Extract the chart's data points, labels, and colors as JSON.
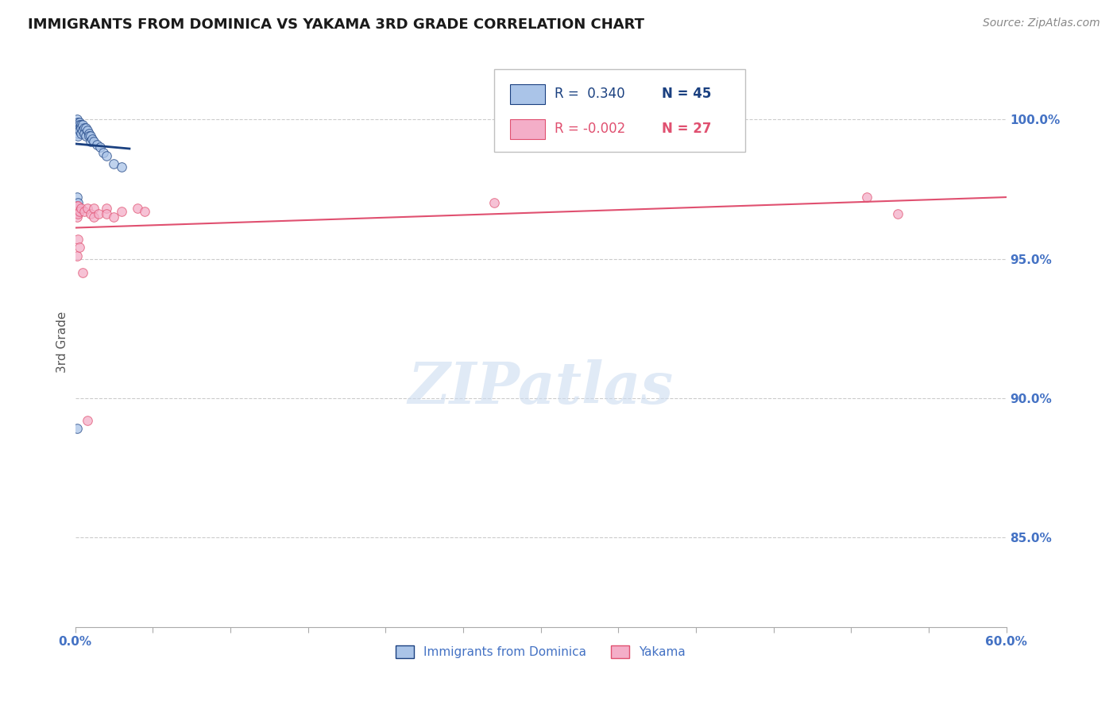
{
  "title": "IMMIGRANTS FROM DOMINICA VS YAKAMA 3RD GRADE CORRELATION CHART",
  "source": "Source: ZipAtlas.com",
  "ylabel": "3rd Grade",
  "ytick_labels": [
    "85.0%",
    "90.0%",
    "95.0%",
    "100.0%"
  ],
  "ytick_values": [
    0.85,
    0.9,
    0.95,
    1.0
  ],
  "xmin": 0.0,
  "xmax": 0.6,
  "ymin": 0.818,
  "ymax": 1.022,
  "blue_color": "#aac4e8",
  "pink_color": "#f4aec8",
  "trend_blue_color": "#1a4080",
  "trend_pink_color": "#e05070",
  "marker_size": 70,
  "blue_points_x": [
    0.001,
    0.001,
    0.001,
    0.001,
    0.001,
    0.002,
    0.002,
    0.002,
    0.002,
    0.002,
    0.002,
    0.003,
    0.003,
    0.003,
    0.003,
    0.004,
    0.004,
    0.004,
    0.005,
    0.005,
    0.006,
    0.006,
    0.007,
    0.007,
    0.008,
    0.009,
    0.009,
    0.01,
    0.01,
    0.011,
    0.012,
    0.014,
    0.016,
    0.018,
    0.02,
    0.025,
    0.03,
    0.001,
    0.002,
    0.001
  ],
  "blue_points_y": [
    0.998,
    0.999,
    1.0,
    0.997,
    0.996,
    0.999,
    0.998,
    0.997,
    0.996,
    0.995,
    0.994,
    0.999,
    0.998,
    0.997,
    0.996,
    0.998,
    0.997,
    0.995,
    0.998,
    0.996,
    0.997,
    0.995,
    0.997,
    0.994,
    0.996,
    0.995,
    0.994,
    0.994,
    0.992,
    0.993,
    0.992,
    0.991,
    0.99,
    0.988,
    0.987,
    0.984,
    0.983,
    0.972,
    0.97,
    0.889
  ],
  "pink_points_x": [
    0.001,
    0.001,
    0.001,
    0.002,
    0.002,
    0.003,
    0.004,
    0.006,
    0.008,
    0.01,
    0.012,
    0.012,
    0.015,
    0.02,
    0.02,
    0.025,
    0.03,
    0.04,
    0.045,
    0.27,
    0.51,
    0.53,
    0.001,
    0.002,
    0.003,
    0.005,
    0.008
  ],
  "pink_points_y": [
    0.969,
    0.967,
    0.965,
    0.969,
    0.966,
    0.967,
    0.968,
    0.967,
    0.968,
    0.966,
    0.968,
    0.965,
    0.966,
    0.968,
    0.966,
    0.965,
    0.967,
    0.968,
    0.967,
    0.97,
    0.972,
    0.966,
    0.951,
    0.957,
    0.954,
    0.945,
    0.892
  ],
  "watermark_text": "ZIPatlas",
  "background_color": "#ffffff",
  "axis_color": "#4472c4",
  "grid_color": "#cccccc",
  "label_color": "#555555"
}
